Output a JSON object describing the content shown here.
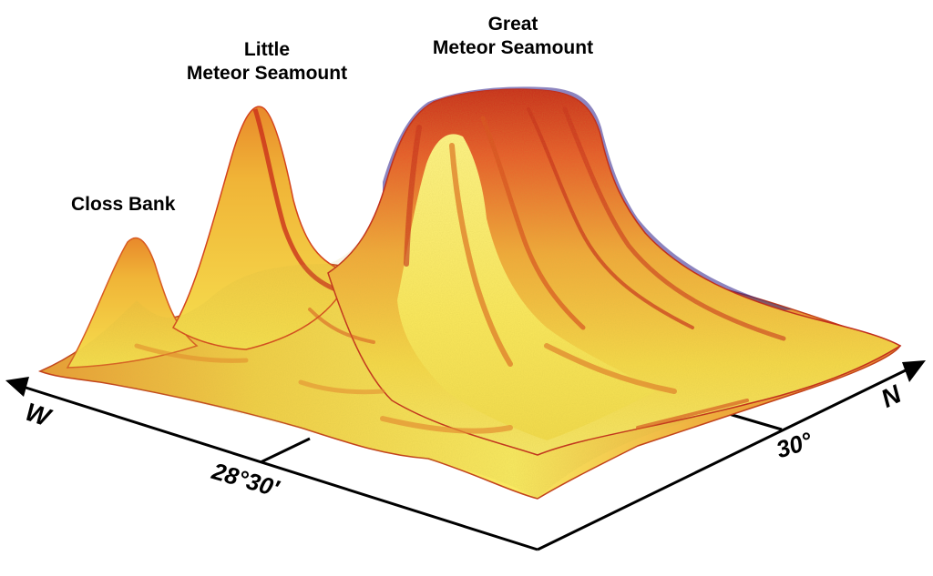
{
  "features": {
    "great_meteor": {
      "line1": "Great",
      "line2": "Meteor Seamount"
    },
    "little_meteor": {
      "line1": "Little",
      "line2": "Meteor Seamount"
    },
    "closs_bank": {
      "label": "Closs Bank"
    }
  },
  "axes": {
    "west": {
      "direction": "W",
      "tick_label": "28°30′"
    },
    "north": {
      "direction": "N",
      "tick_label": "30°"
    }
  },
  "colors": {
    "peak": "#fff36a",
    "mid": "#f2c236",
    "slope": "#e8892b",
    "steep": "#d83a18",
    "shadow": "#2d1f8a"
  }
}
